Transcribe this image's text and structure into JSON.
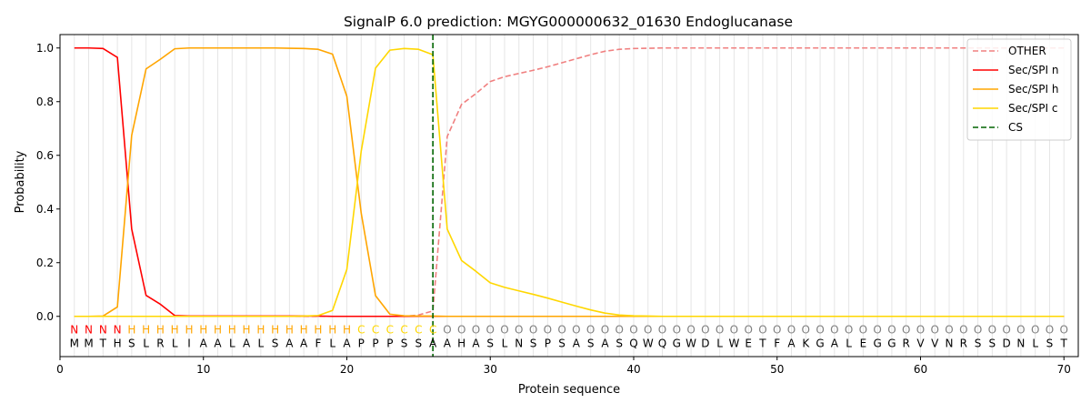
{
  "chart_data": {
    "type": "line",
    "title": "SignalP 6.0 prediction: MGYG000000632_01630 Endoglucanase",
    "xlabel": "Protein sequence",
    "ylabel": "Probability",
    "xlim": [
      0,
      71
    ],
    "ylim": [
      -0.15,
      1.05
    ],
    "xticks": [
      0,
      10,
      20,
      30,
      40,
      50,
      60,
      70
    ],
    "yticks": [
      0.0,
      0.2,
      0.4,
      0.6,
      0.8,
      1.0
    ],
    "legend_position": "top-right",
    "sequence": [
      "M",
      "M",
      "T",
      "H",
      "S",
      "L",
      "R",
      "L",
      "I",
      "A",
      "A",
      "L",
      "A",
      "L",
      "S",
      "A",
      "A",
      "F",
      "L",
      "A",
      "P",
      "P",
      "P",
      "S",
      "S",
      "A",
      "A",
      "H",
      "A",
      "S",
      "L",
      "N",
      "S",
      "P",
      "S",
      "A",
      "S",
      "A",
      "S",
      "Q",
      "W",
      "Q",
      "G",
      "W",
      "D",
      "L",
      "W",
      "E",
      "T",
      "F",
      "A",
      "K",
      "G",
      "A",
      "L",
      "E",
      "G",
      "G",
      "R",
      "V",
      "V",
      "N",
      "R",
      "S",
      "S",
      "D",
      "N",
      "L",
      "S",
      "T"
    ],
    "labels": [
      "N",
      "N",
      "N",
      "N",
      "H",
      "H",
      "H",
      "H",
      "H",
      "H",
      "H",
      "H",
      "H",
      "H",
      "H",
      "H",
      "H",
      "H",
      "H",
      "H",
      "C",
      "C",
      "C",
      "C",
      "C",
      "C",
      "O",
      "O",
      "O",
      "O",
      "O",
      "O",
      "O",
      "O",
      "O",
      "O",
      "O",
      "O",
      "O",
      "O",
      "O",
      "O",
      "O",
      "O",
      "O",
      "O",
      "O",
      "O",
      "O",
      "O",
      "O",
      "O",
      "O",
      "O",
      "O",
      "O",
      "O",
      "O",
      "O",
      "O",
      "O",
      "O",
      "O",
      "O",
      "O",
      "O",
      "O",
      "O",
      "O",
      "O"
    ],
    "label_colors": {
      "N": "#ff0000",
      "H": "#ffa500",
      "C": "#ffd700",
      "O": "#808080"
    },
    "cleavage_site": 26,
    "series": [
      {
        "name": "OTHER",
        "color": "#f08080",
        "dash": "dashed",
        "values": [
          0,
          0,
          0,
          0,
          0,
          0,
          0,
          0,
          0,
          0,
          0,
          0,
          0,
          0,
          0,
          0,
          0,
          0,
          0,
          0,
          0,
          0,
          0,
          0,
          0.005,
          0.02,
          0.67,
          0.79,
          0.83,
          0.875,
          0.893,
          0.905,
          0.917,
          0.93,
          0.945,
          0.96,
          0.975,
          0.988,
          0.995,
          0.998,
          0.999,
          1,
          1,
          1,
          1,
          1,
          1,
          1,
          1,
          1,
          1,
          1,
          1,
          1,
          1,
          1,
          1,
          1,
          1,
          1,
          1,
          1,
          1,
          1,
          1,
          1,
          1,
          1,
          1,
          1
        ]
      },
      {
        "name": "Sec/SPI n",
        "color": "#ff0000",
        "dash": "solid",
        "values": [
          1.0,
          1.0,
          0.998,
          0.965,
          0.325,
          0.078,
          0.045,
          0.003,
          0.001,
          0.001,
          0.001,
          0.001,
          0.001,
          0.001,
          0.001,
          0.001,
          0.001,
          0.001,
          0,
          0,
          0,
          0,
          0,
          0,
          0,
          0,
          0,
          0,
          0,
          0,
          0,
          0,
          0,
          0,
          0,
          0,
          0,
          0,
          0,
          0,
          0,
          0,
          0,
          0,
          0,
          0,
          0,
          0,
          0,
          0,
          0,
          0,
          0,
          0,
          0,
          0,
          0,
          0,
          0,
          0,
          0,
          0,
          0,
          0,
          0,
          0,
          0,
          0,
          0,
          0
        ]
      },
      {
        "name": "Sec/SPI h",
        "color": "#ffa500",
        "dash": "solid",
        "values": [
          0,
          0,
          0.001,
          0.035,
          0.675,
          0.922,
          0.958,
          0.997,
          1.0,
          1.0,
          1.0,
          1.0,
          1.0,
          1.0,
          1.0,
          0.999,
          0.998,
          0.995,
          0.977,
          0.82,
          0.385,
          0.077,
          0.008,
          0.002,
          0.001,
          0.001,
          0,
          0,
          0,
          0,
          0,
          0,
          0,
          0,
          0,
          0,
          0,
          0,
          0,
          0,
          0,
          0,
          0,
          0,
          0,
          0,
          0,
          0,
          0,
          0,
          0,
          0,
          0,
          0,
          0,
          0,
          0,
          0,
          0,
          0,
          0,
          0,
          0,
          0,
          0,
          0,
          0,
          0,
          0,
          0
        ]
      },
      {
        "name": "Sec/SPI c",
        "color": "#ffd700",
        "dash": "solid",
        "values": [
          0,
          0,
          0,
          0,
          0,
          0,
          0,
          0,
          0,
          0,
          0,
          0,
          0,
          0,
          0,
          0,
          0.001,
          0.003,
          0.022,
          0.175,
          0.615,
          0.925,
          0.992,
          0.998,
          0.995,
          0.975,
          0.325,
          0.208,
          0.168,
          0.125,
          0.108,
          0.095,
          0.082,
          0.068,
          0.053,
          0.038,
          0.024,
          0.012,
          0.005,
          0.002,
          0.001,
          0,
          0,
          0,
          0,
          0,
          0,
          0,
          0,
          0,
          0,
          0,
          0,
          0,
          0,
          0,
          0,
          0,
          0,
          0,
          0,
          0,
          0,
          0,
          0,
          0,
          0,
          0,
          0,
          0
        ]
      }
    ],
    "cs_legend": {
      "name": "CS",
      "color": "#006400",
      "dash": "dashed"
    }
  }
}
